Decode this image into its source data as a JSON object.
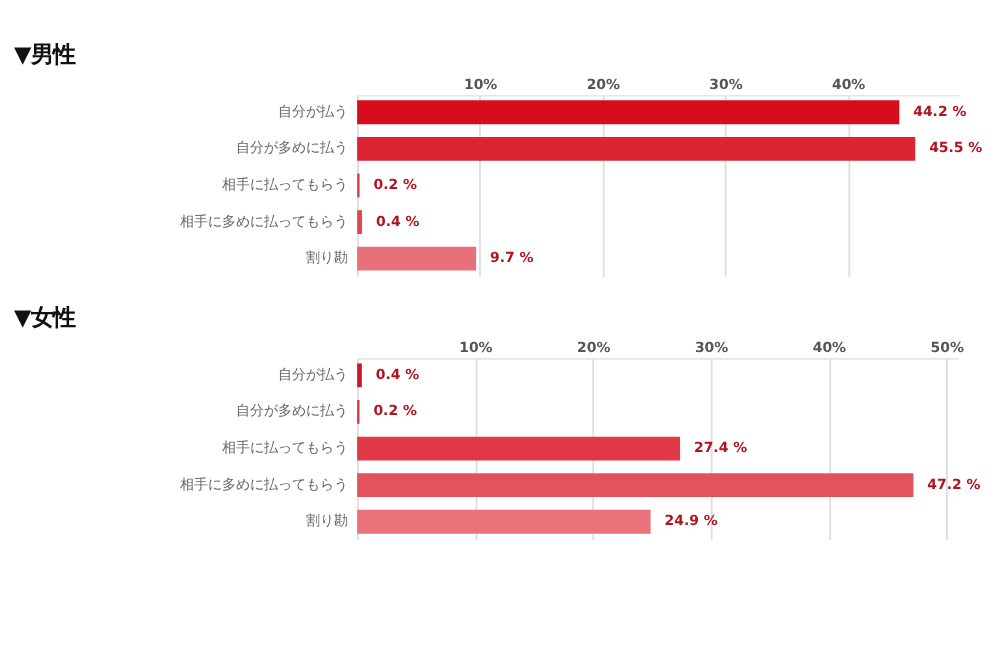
{
  "chart_data": [
    {
      "type": "bar",
      "orientation": "horizontal",
      "title": "▼男性",
      "categories": [
        "自分が払う",
        "自分が多めに払う",
        "相手に払ってもらう",
        "相手に多めに払ってもらう",
        "割り勘"
      ],
      "values": [
        44.2,
        45.5,
        0.2,
        0.4,
        9.7
      ],
      "colors": [
        "#d70c1c",
        "#dc2434",
        "#d9404b",
        "#dd4a55",
        "#e8707a"
      ],
      "value_labels": [
        "44.2 %",
        "45.5 %",
        "0.2 %",
        "0.4 %",
        "9.7 %"
      ],
      "xlim": [
        0,
        49
      ],
      "xticks": [
        {
          "value": 10,
          "label": "10%"
        },
        {
          "value": 20,
          "label": "20%"
        },
        {
          "value": 30,
          "label": "30%"
        },
        {
          "value": 40,
          "label": "40%"
        }
      ],
      "grid": "x"
    },
    {
      "type": "bar",
      "orientation": "horizontal",
      "title": "▼女性",
      "categories": [
        "自分が払う",
        "自分が多めに払う",
        "相手に払ってもらう",
        "相手に多めに払ってもらう",
        "割り勘"
      ],
      "values": [
        0.4,
        0.2,
        27.4,
        47.2,
        24.9
      ],
      "colors": [
        "#c81a26",
        "#d03a45",
        "#e03844",
        "#e4525d",
        "#e9717a"
      ],
      "value_labels": [
        "0.4 %",
        "0.2 %",
        "27.4 %",
        "47.2 %",
        "24.9 %"
      ],
      "xlim": [
        0,
        51
      ],
      "xticks": [
        {
          "value": 10,
          "label": "10%"
        },
        {
          "value": 20,
          "label": "20%"
        },
        {
          "value": 30,
          "label": "30%"
        },
        {
          "value": 40,
          "label": "40%"
        },
        {
          "value": 50,
          "label": "50%"
        }
      ],
      "grid": "x"
    }
  ]
}
